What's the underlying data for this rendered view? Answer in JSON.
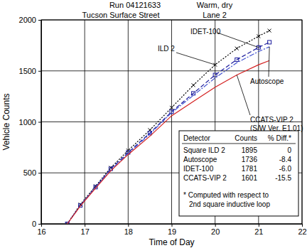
{
  "chart_data": {
    "type": "line",
    "title": "Run 04121633",
    "subtitle": "Warm, dry",
    "x_label": "Time of Day",
    "y_label": "Vehicle Counts",
    "x": [
      16.6,
      16.9,
      17.25,
      17.6,
      18,
      18.5,
      19,
      19.5,
      20,
      20.5,
      21,
      21.25
    ],
    "series": [
      {
        "name": "ILD 2",
        "color": "#000000",
        "line_style": "dotted",
        "marker": "x",
        "values": [
          0,
          190,
          370,
          550,
          720,
          920,
          1140,
          1360,
          1560,
          1720,
          1840,
          1895
        ]
      },
      {
        "name": "IDET-100",
        "color": "#1a1a9c",
        "line_style": "dashed",
        "marker": "square",
        "values": [
          0,
          180,
          360,
          540,
          700,
          890,
          1100,
          1280,
          1460,
          1610,
          1730,
          1781
        ]
      },
      {
        "name": "Autoscope",
        "color": "#4050d0",
        "line_style": "dashdot",
        "values": [
          0,
          180,
          360,
          530,
          690,
          880,
          1090,
          1260,
          1430,
          1580,
          1690,
          1736
        ]
      },
      {
        "name": "CCATS-VIP 2",
        "color": "#d42020",
        "line_style": "solid",
        "values": [
          0,
          175,
          350,
          520,
          680,
          860,
          1060,
          1200,
          1340,
          1460,
          1560,
          1601
        ]
      }
    ],
    "xlim": [
      16,
      22
    ],
    "xticks": [
      16,
      17,
      18,
      19,
      20,
      21,
      22
    ],
    "ylim": [
      0,
      2000
    ],
    "yticks": [
      0,
      500,
      1000,
      1500,
      2000
    ],
    "grid": true,
    "annotations": [
      "Tucson Surface Street",
      "Lane 2",
      "IDET-100",
      "ILD 2",
      "Autoscope",
      "CCATS-VIP 2",
      "(S/W Ver. E1.01)"
    ],
    "table": {
      "columns": [
        "Detector",
        "Counts",
        "% Diff.*"
      ],
      "rows": [
        [
          "Square ILD 2",
          "1895",
          "0"
        ],
        [
          "Autoscope",
          "1736",
          "-8.4"
        ],
        [
          "IDET-100",
          "1781",
          "-6.0"
        ],
        [
          "CCATS-VIP 2",
          "1601",
          "-15.5"
        ]
      ],
      "footnote": [
        "* Computed with respect to",
        "2nd square inductive loop"
      ]
    }
  }
}
